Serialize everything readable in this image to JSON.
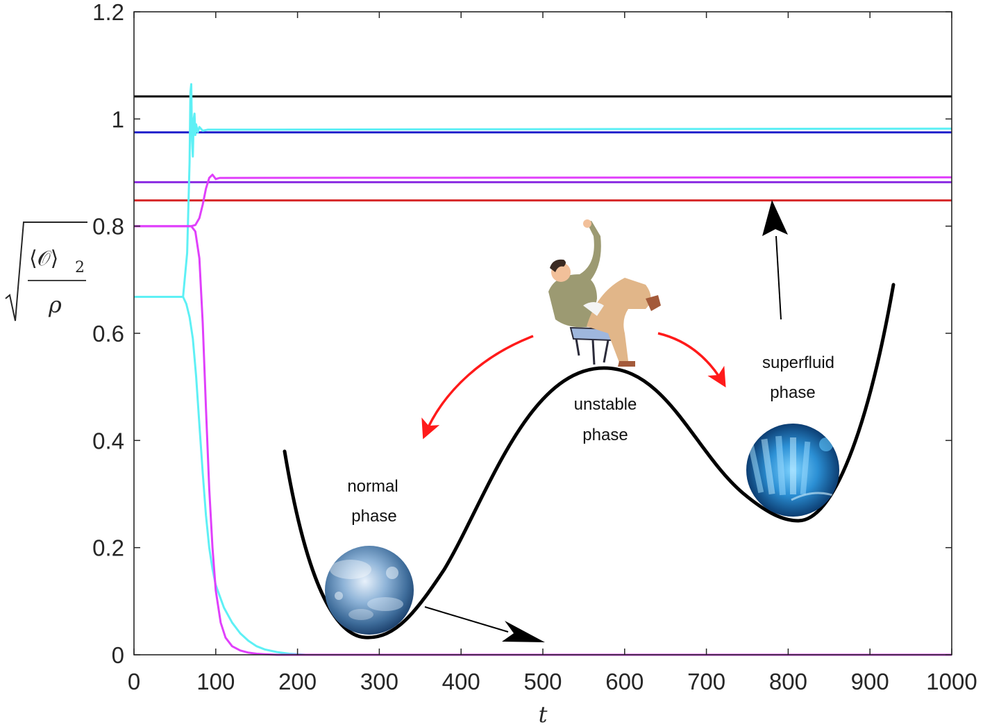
{
  "chart_data": {
    "type": "line",
    "xlabel": "t",
    "ylabel": {
      "numerator": "⟨𝒪⟩",
      "subscript": "2",
      "denominator": "ρ"
    },
    "xlim": [
      0,
      1000
    ],
    "ylim": [
      0,
      1.2
    ],
    "xticks": [
      "0",
      "100",
      "200",
      "300",
      "400",
      "500",
      "600",
      "700",
      "800",
      "900",
      "1000"
    ],
    "yticks": [
      "0",
      "0.2",
      "0.4",
      "0.6",
      "0.8",
      "1",
      "1.2"
    ],
    "grid": false,
    "series": [
      {
        "color": "#000000",
        "x": [
          0,
          1000
        ],
        "y": [
          1.042,
          1.042
        ]
      },
      {
        "color": "#2222cc",
        "x": [
          0,
          1000
        ],
        "y": [
          0.975,
          0.975
        ]
      },
      {
        "color": "#8a2be2",
        "x": [
          0,
          1000
        ],
        "y": [
          0.882,
          0.882
        ]
      },
      {
        "color": "#d62728",
        "x": [
          0,
          1000
        ],
        "y": [
          0.848,
          0.848
        ]
      },
      {
        "color": "#5ef0f5",
        "x": [
          0,
          60,
          65,
          68,
          69,
          70,
          71,
          72,
          73,
          74,
          75,
          76,
          78,
          80,
          84,
          90,
          100,
          1000
        ],
        "y": [
          0.668,
          0.668,
          0.75,
          0.92,
          1.05,
          1.065,
          0.96,
          0.93,
          1.0,
          1.01,
          0.97,
          0.99,
          0.975,
          0.985,
          0.978,
          0.98,
          0.98,
          0.982
        ]
      },
      {
        "color": "#5ef0f5",
        "x": [
          0,
          60,
          64,
          68,
          72,
          76,
          80,
          84,
          88,
          92,
          96,
          100,
          110,
          120,
          130,
          140,
          150,
          160,
          175,
          190,
          210,
          1000
        ],
        "y": [
          0.668,
          0.668,
          0.655,
          0.63,
          0.59,
          0.52,
          0.43,
          0.34,
          0.26,
          0.2,
          0.16,
          0.13,
          0.088,
          0.06,
          0.04,
          0.026,
          0.016,
          0.01,
          0.005,
          0.002,
          0.0,
          0.0
        ]
      },
      {
        "color": "#e040fb",
        "x": [
          0,
          70,
          75,
          80,
          84,
          88,
          92,
          96,
          100,
          105,
          1000
        ],
        "y": [
          0.8,
          0.8,
          0.802,
          0.815,
          0.84,
          0.87,
          0.89,
          0.896,
          0.888,
          0.89,
          0.891
        ]
      },
      {
        "color": "#e040fb",
        "x": [
          0,
          70,
          75,
          80,
          84,
          88,
          92,
          96,
          100,
          106,
          112,
          120,
          130,
          140,
          150,
          160,
          175,
          1000
        ],
        "y": [
          0.8,
          0.8,
          0.79,
          0.74,
          0.62,
          0.46,
          0.31,
          0.2,
          0.12,
          0.06,
          0.032,
          0.016,
          0.008,
          0.004,
          0.002,
          0.001,
          0.0,
          0.0
        ]
      }
    ],
    "annotations": [
      {
        "lines": [
          "normal",
          "phase"
        ]
      },
      {
        "lines": [
          "unstable",
          "phase"
        ]
      },
      {
        "lines": [
          "superfluid",
          "phase"
        ]
      }
    ]
  }
}
